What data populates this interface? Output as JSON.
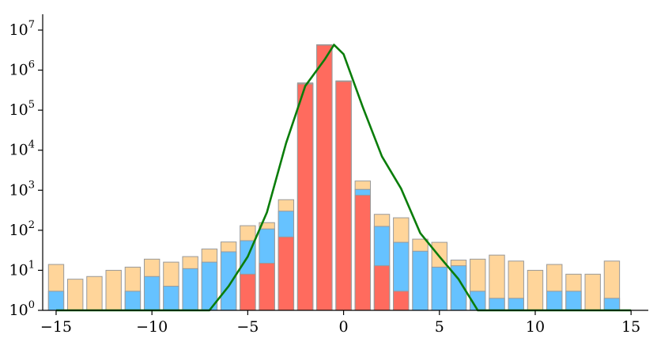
{
  "chart_data": {
    "type": "bar",
    "title": "",
    "xlabel": "",
    "ylabel": "",
    "yscale": "log",
    "ylim": [
      1,
      10000000
    ],
    "xlim": [
      -15.7,
      15.9
    ],
    "grid": false,
    "stacking": "overlaid",
    "x": [
      -15,
      -14,
      -13,
      -12,
      -11,
      -10,
      -9,
      -8,
      -7,
      -6,
      -5,
      -4,
      -3,
      -2,
      -1,
      0,
      1,
      2,
      3,
      4,
      5,
      6,
      7,
      8,
      9,
      10,
      11,
      12,
      13,
      14,
      15
    ],
    "series": [
      {
        "color": "#ffd59a",
        "values": [
          14,
          6,
          7,
          10,
          12,
          19,
          16,
          22,
          34,
          51,
          130,
          155,
          580,
          480000,
          4300000,
          540000,
          1700,
          250,
          205,
          60,
          50,
          18,
          19,
          24,
          17,
          10,
          14,
          8,
          8,
          17,
          0
        ]
      },
      {
        "color": "#66c2ff",
        "values": [
          3,
          1,
          1,
          1,
          3,
          7,
          4,
          11,
          16,
          29,
          55,
          108,
          300,
          460000,
          4300000,
          530000,
          1050,
          125,
          50,
          30,
          12,
          13,
          3,
          2,
          2,
          1,
          3,
          3,
          1,
          2,
          0
        ]
      },
      {
        "color": "#ff6b5e",
        "values": [
          0,
          0,
          0,
          0,
          0,
          0,
          0,
          0,
          0,
          0,
          8,
          15,
          68,
          450000,
          4200000,
          520000,
          750,
          13,
          3,
          0,
          0,
          0,
          0,
          0,
          0,
          0,
          0,
          0,
          0,
          0,
          0
        ]
      }
    ],
    "line": {
      "color": "#0a7d0a",
      "x": [
        -15,
        -7,
        -6,
        -5,
        -4,
        -3,
        -2,
        -1,
        -0.5,
        0,
        1,
        2,
        3,
        4,
        5,
        6,
        7,
        15
      ],
      "y": [
        1,
        1,
        4,
        22,
        280,
        15000,
        400000,
        1800000,
        4300000,
        2500000,
        120000,
        7000,
        1100,
        85,
        22,
        6,
        1,
        1
      ]
    },
    "x_ticks": [
      {
        "value": -15,
        "label": "−15"
      },
      {
        "value": -10,
        "label": "−10"
      },
      {
        "value": -5,
        "label": "−5"
      },
      {
        "value": 0,
        "label": "0"
      },
      {
        "value": 5,
        "label": "5"
      },
      {
        "value": 10,
        "label": "10"
      },
      {
        "value": 15,
        "label": "15"
      }
    ],
    "y_ticks": [
      {
        "value": 1,
        "base": "10",
        "exp": "0"
      },
      {
        "value": 10,
        "base": "10",
        "exp": "1"
      },
      {
        "value": 100,
        "base": "10",
        "exp": "2"
      },
      {
        "value": 1000,
        "base": "10",
        "exp": "3"
      },
      {
        "value": 10000,
        "base": "10",
        "exp": "4"
      },
      {
        "value": 100000,
        "base": "10",
        "exp": "5"
      },
      {
        "value": 1000000,
        "base": "10",
        "exp": "6"
      },
      {
        "value": 10000000,
        "base": "10",
        "exp": "7"
      }
    ]
  }
}
